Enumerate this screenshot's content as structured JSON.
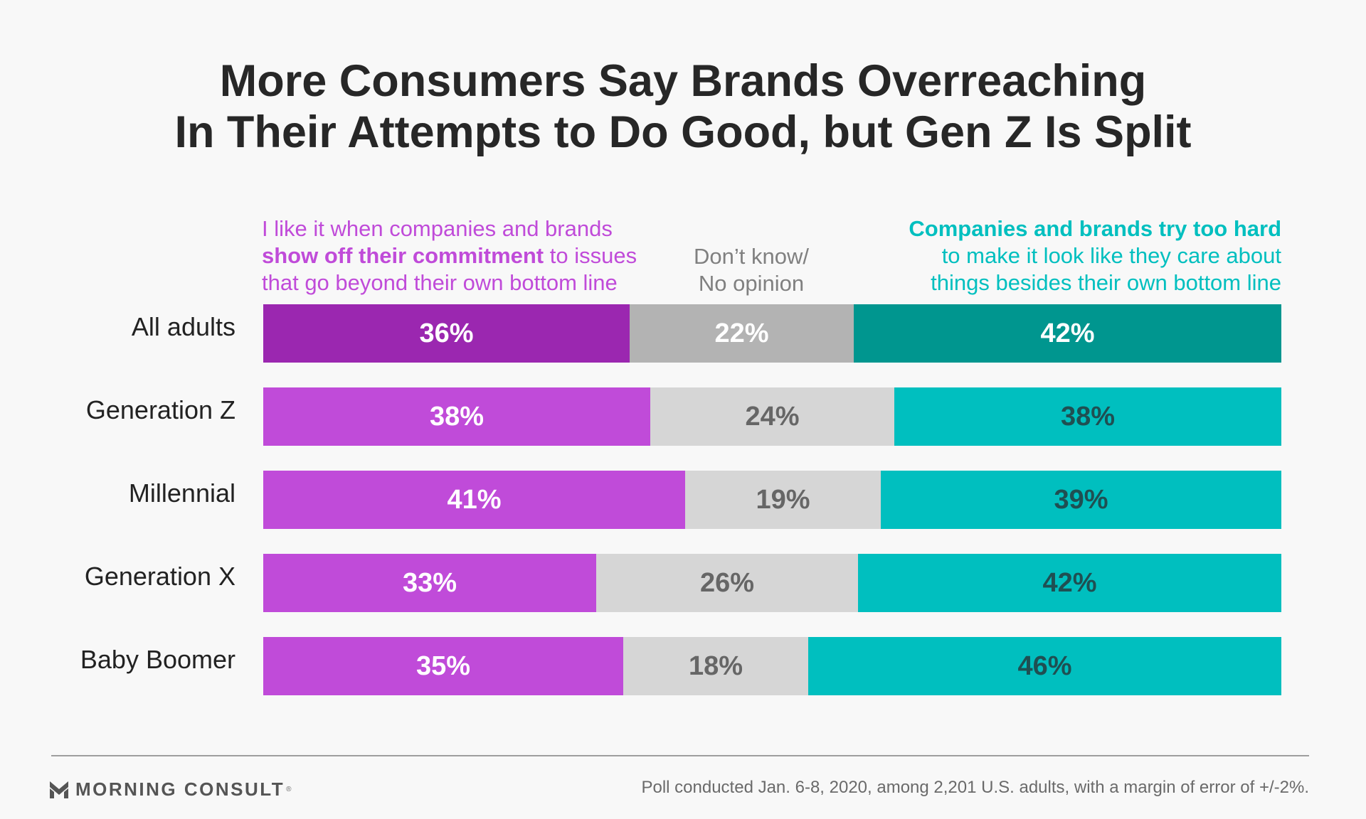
{
  "title": {
    "line1": "More Consumers Say Brands Overreaching",
    "line2": "In Their Attempts to Do Good, but Gen Z Is Split"
  },
  "headers": {
    "left": {
      "line1": "I like it when companies and brands",
      "line2_bold": "show off their commitment",
      "line2_rest": " to issues",
      "line3": "that go beyond their own bottom line"
    },
    "middle": {
      "line1": "Don’t know/",
      "line2": "No opinion"
    },
    "right": {
      "line1_bold": "Companies and brands try too hard",
      "line2": "to make it look like they care about",
      "line3": "things besides their own bottom line"
    }
  },
  "chart_data": {
    "type": "bar",
    "orientation": "horizontal",
    "stacked": true,
    "normalized_percent": true,
    "categories": [
      "All adults",
      "Generation Z",
      "Millennial",
      "Generation X",
      "Baby Boomer"
    ],
    "series": [
      {
        "key": "like",
        "values": [
          36,
          38,
          41,
          33,
          35
        ]
      },
      {
        "key": "dontknow",
        "values": [
          22,
          24,
          19,
          26,
          18
        ]
      },
      {
        "key": "tryhard",
        "values": [
          42,
          38,
          39,
          42,
          46
        ]
      }
    ],
    "labels": [
      [
        "36%",
        "22%",
        "42%"
      ],
      [
        "38%",
        "24%",
        "38%"
      ],
      [
        "41%",
        "19%",
        "39%"
      ],
      [
        "33%",
        "26%",
        "42%"
      ],
      [
        "35%",
        "18%",
        "46%"
      ]
    ],
    "colors": {
      "highlight_row": {
        "fills": [
          "#9b27b0",
          "#b3b3b3",
          "#00968f"
        ],
        "text": [
          "#ffffff",
          "#ffffff",
          "#ffffff"
        ]
      },
      "default_row": {
        "fills": [
          "#c04bd9",
          "#d6d6d6",
          "#00bfbf"
        ],
        "text": [
          "#ffffff",
          "#666666",
          "#1f4f52"
        ]
      }
    },
    "highlight_row_index": 0
  },
  "footer": {
    "logo_text": "MORNING CONSULT",
    "logo_mark": "®",
    "note": "Poll conducted Jan. 6-8, 2020, among 2,201 U.S. adults, with a margin of error of +/-2%."
  }
}
